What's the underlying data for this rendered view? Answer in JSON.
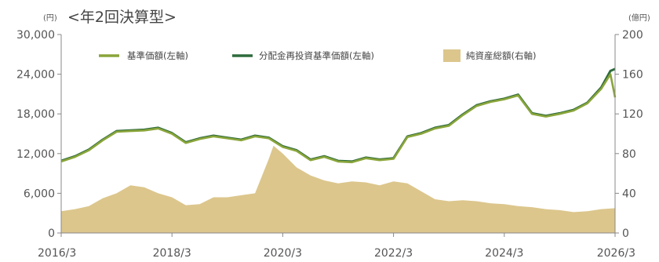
{
  "chart_data": {
    "type": "line",
    "title": "<年2回決算型>",
    "left_axis_unit": "(円)",
    "right_axis_unit": "(億円)",
    "x_ticks": [
      "2016/3",
      "2018/3",
      "2020/3",
      "2022/3",
      "2024/3",
      "2026/3"
    ],
    "y_left": {
      "min": 0,
      "max": 30000,
      "ticks": [
        "0",
        "6,000",
        "12,000",
        "18,000",
        "24,000",
        "30,000"
      ],
      "tick_values": [
        0,
        6000,
        12000,
        18000,
        24000,
        30000
      ]
    },
    "y_right": {
      "min": 0,
      "max": 200,
      "ticks": [
        "0",
        "40",
        "80",
        "120",
        "160",
        "200"
      ],
      "tick_values": [
        0,
        40,
        80,
        120,
        160,
        200
      ]
    },
    "x_range": [
      "2016-03",
      "2026-03"
    ],
    "grid": false,
    "legend_position": "top",
    "colors": {
      "nav": "#8aa53a",
      "reinvest": "#2e6b3c",
      "assets": "#dcc68c"
    },
    "series": [
      {
        "name": "基準価額(左軸)",
        "axis": "left",
        "kind": "line",
        "x": [
          "2016-03",
          "2016-06",
          "2016-09",
          "2016-12",
          "2017-03",
          "2017-06",
          "2017-09",
          "2017-12",
          "2018-03",
          "2018-06",
          "2018-09",
          "2018-12",
          "2019-03",
          "2019-06",
          "2019-09",
          "2019-12",
          "2020-03",
          "2020-06",
          "2020-09",
          "2020-12",
          "2021-03",
          "2021-06",
          "2021-09",
          "2021-12",
          "2022-03",
          "2022-06",
          "2022-09",
          "2022-12",
          "2023-03",
          "2023-06",
          "2023-09",
          "2023-12",
          "2024-03",
          "2024-06",
          "2024-09",
          "2024-12",
          "2025-03",
          "2025-06",
          "2025-09",
          "2025-12",
          "2026-02",
          "2026-03"
        ],
        "values": [
          10800,
          11500,
          12500,
          14000,
          15300,
          15400,
          15500,
          15800,
          15000,
          13600,
          14200,
          14600,
          14300,
          14000,
          14600,
          14300,
          13000,
          12400,
          11000,
          11500,
          10800,
          10700,
          11300,
          11000,
          11200,
          14500,
          15000,
          15800,
          16200,
          17800,
          19200,
          19800,
          20200,
          20800,
          18000,
          17600,
          18000,
          18500,
          19600,
          21800,
          24000,
          20500
        ]
      },
      {
        "name": "分配金再投資基準価額(左軸)",
        "axis": "left",
        "kind": "line",
        "x": [
          "2016-03",
          "2016-06",
          "2016-09",
          "2016-12",
          "2017-03",
          "2017-06",
          "2017-09",
          "2017-12",
          "2018-03",
          "2018-06",
          "2018-09",
          "2018-12",
          "2019-03",
          "2019-06",
          "2019-09",
          "2019-12",
          "2020-03",
          "2020-06",
          "2020-09",
          "2020-12",
          "2021-03",
          "2021-06",
          "2021-09",
          "2021-12",
          "2022-03",
          "2022-06",
          "2022-09",
          "2022-12",
          "2023-03",
          "2023-06",
          "2023-09",
          "2023-12",
          "2024-03",
          "2024-06",
          "2024-09",
          "2024-12",
          "2025-03",
          "2025-06",
          "2025-09",
          "2025-12",
          "2026-02",
          "2026-03"
        ],
        "values": [
          10900,
          11600,
          12600,
          14100,
          15400,
          15500,
          15600,
          15900,
          15100,
          13700,
          14300,
          14700,
          14400,
          14100,
          14700,
          14400,
          13100,
          12500,
          11100,
          11600,
          10900,
          10800,
          11400,
          11100,
          11300,
          14600,
          15100,
          15900,
          16300,
          17900,
          19300,
          19900,
          20300,
          20900,
          18100,
          17700,
          18100,
          18600,
          19700,
          22000,
          24500,
          24800
        ]
      },
      {
        "name": "純資産総額(右軸)",
        "axis": "right",
        "kind": "area",
        "x": [
          "2016-03",
          "2016-06",
          "2016-09",
          "2016-12",
          "2017-03",
          "2017-06",
          "2017-09",
          "2017-12",
          "2018-03",
          "2018-06",
          "2018-09",
          "2018-12",
          "2019-03",
          "2019-06",
          "2019-09",
          "2019-12",
          "2020-01",
          "2020-03",
          "2020-06",
          "2020-09",
          "2020-12",
          "2021-03",
          "2021-06",
          "2021-09",
          "2021-12",
          "2022-03",
          "2022-06",
          "2022-09",
          "2022-12",
          "2023-03",
          "2023-06",
          "2023-09",
          "2023-12",
          "2024-03",
          "2024-06",
          "2024-09",
          "2024-12",
          "2025-03",
          "2025-06",
          "2025-09",
          "2025-12",
          "2026-03"
        ],
        "values": [
          22,
          24,
          27,
          35,
          40,
          48,
          46,
          40,
          36,
          28,
          29,
          36,
          36,
          38,
          40,
          75,
          88,
          80,
          66,
          58,
          53,
          50,
          52,
          51,
          48,
          52,
          50,
          42,
          34,
          32,
          33,
          32,
          30,
          29,
          27,
          26,
          24,
          23,
          21,
          22,
          24,
          25
        ]
      }
    ]
  }
}
